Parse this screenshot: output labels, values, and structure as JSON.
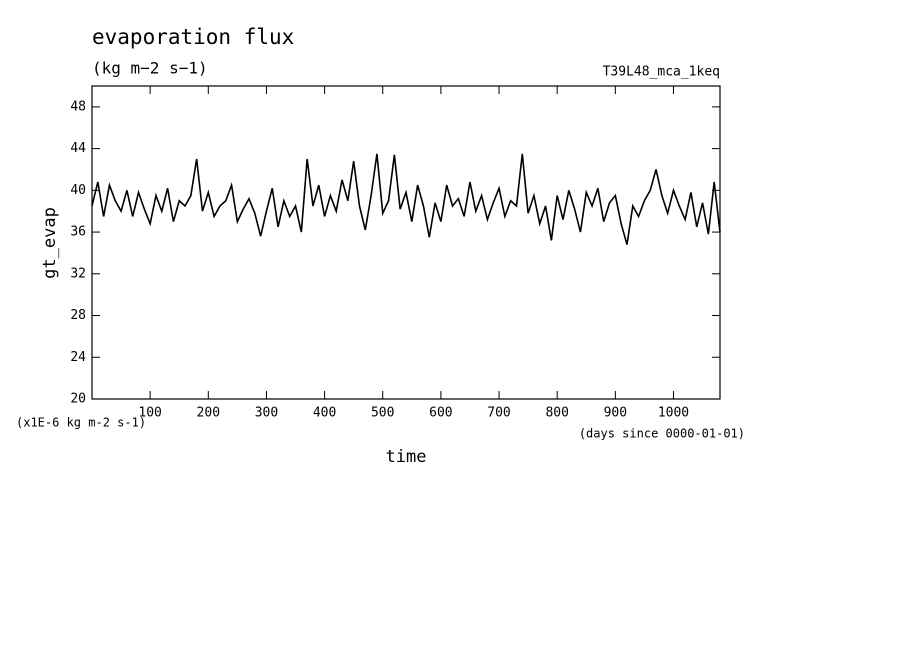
{
  "chart_data": {
    "type": "line",
    "title": "evaporation flux",
    "subtitle": "(kg m−2 s−1)",
    "annotation": "T39L48_mca_1keq",
    "ylabel": "gt_evap",
    "xlabel": "time",
    "yunits": "(x1E-6 kg m-2 s-1)",
    "xunits": "(days since 0000-01-01)",
    "xlim": [
      0,
      1080
    ],
    "ylim": [
      20,
      50
    ],
    "xticks": [
      100,
      200,
      300,
      400,
      500,
      600,
      700,
      800,
      900,
      1000
    ],
    "yticks": [
      20,
      24,
      28,
      32,
      36,
      40,
      44,
      48
    ],
    "x": [
      0,
      10,
      20,
      30,
      40,
      50,
      60,
      70,
      80,
      90,
      100,
      110,
      120,
      130,
      140,
      150,
      160,
      170,
      180,
      190,
      200,
      210,
      220,
      230,
      240,
      250,
      260,
      270,
      280,
      290,
      300,
      310,
      320,
      330,
      340,
      350,
      360,
      370,
      380,
      390,
      400,
      410,
      420,
      430,
      440,
      450,
      460,
      470,
      480,
      490,
      500,
      510,
      520,
      530,
      540,
      550,
      560,
      570,
      580,
      590,
      600,
      610,
      620,
      630,
      640,
      650,
      660,
      670,
      680,
      690,
      700,
      710,
      720,
      730,
      740,
      750,
      760,
      770,
      780,
      790,
      800,
      810,
      820,
      830,
      840,
      850,
      860,
      870,
      880,
      890,
      900,
      910,
      920,
      930,
      940,
      950,
      960,
      970,
      980,
      990,
      1000,
      1010,
      1020,
      1030,
      1040,
      1050,
      1060,
      1070,
      1080
    ],
    "series": [
      {
        "name": "gt_evap",
        "color": "#000000",
        "values": [
          38.5,
          40.8,
          37.5,
          40.5,
          39,
          38,
          40,
          37.5,
          39.8,
          38.2,
          36.8,
          39.5,
          38,
          40.2,
          37,
          39,
          38.5,
          39.5,
          43,
          38,
          39.8,
          37.5,
          38.5,
          39,
          40.5,
          37,
          38.2,
          39.2,
          37.8,
          35.6,
          38,
          40.2,
          36.5,
          39,
          37.5,
          38.5,
          36,
          43,
          38.5,
          40.5,
          37.5,
          39.5,
          38,
          41,
          39,
          42.8,
          38.5,
          36.2,
          39.5,
          43.5,
          37.8,
          39,
          43.4,
          38.2,
          39.8,
          37,
          40.5,
          38.5,
          35.5,
          38.8,
          37,
          40.5,
          38.5,
          39.2,
          37.5,
          40.8,
          38,
          39.5,
          37.2,
          38.8,
          40.2,
          37.5,
          39,
          38.5,
          43.5,
          37.8,
          39.5,
          36.8,
          38.5,
          35.2,
          39.5,
          37.2,
          40,
          38.2,
          36,
          39.8,
          38.5,
          40.2,
          37,
          38.8,
          39.5,
          36.8,
          34.8,
          38.5,
          37.5,
          39,
          40,
          42,
          39.5,
          37.8,
          40,
          38.5,
          37.2,
          39.8,
          36.5,
          38.8,
          35.8,
          40.8,
          36
        ]
      }
    ]
  }
}
